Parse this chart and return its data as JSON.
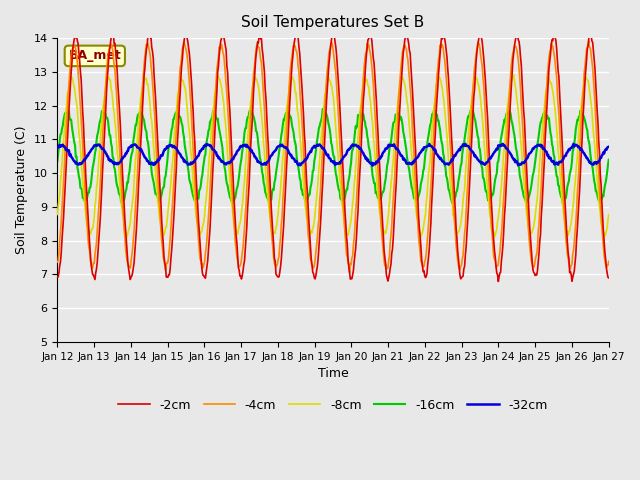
{
  "title": "Soil Temperatures Set B",
  "xlabel": "Time",
  "ylabel": "Soil Temperature (C)",
  "ylim": [
    5.0,
    14.0
  ],
  "yticks": [
    5.0,
    6.0,
    7.0,
    8.0,
    9.0,
    10.0,
    11.0,
    12.0,
    13.0,
    14.0
  ],
  "xtick_labels": [
    "Jan 12",
    "Jan 13",
    "Jan 14",
    "Jan 15",
    "Jan 16",
    "Jan 17",
    "Jan 18",
    "Jan 19",
    "Jan 20",
    "Jan 21",
    "Jan 22",
    "Jan 23",
    "Jan 24",
    "Jan 25",
    "Jan 26",
    "Jan 27"
  ],
  "legend_labels": [
    "-2cm",
    "-4cm",
    "-8cm",
    "-16cm",
    "-32cm"
  ],
  "legend_colors": [
    "#dd0000",
    "#ff8800",
    "#dddd00",
    "#00cc00",
    "#0000dd"
  ],
  "line_widths": [
    1.2,
    1.2,
    1.2,
    1.5,
    1.8
  ],
  "annotation_text": "BA_met",
  "background_color": "#e8e8e8",
  "plot_bg_color": "#e8e8e8",
  "grid_color": "#ffffff",
  "n_points_per_day": 48,
  "n_days": 15,
  "depth_params": {
    "d2": {
      "mean": 10.5,
      "amp": 3.6,
      "phase": -1.5708,
      "noise": 0.05
    },
    "d4": {
      "mean": 10.5,
      "amp": 3.3,
      "phase": -1.27,
      "noise": 0.05
    },
    "d8": {
      "mean": 10.5,
      "amp": 2.3,
      "phase": -0.87,
      "noise": 0.05
    },
    "d16": {
      "mean": 10.5,
      "amp": 1.3,
      "phase": -0.07,
      "noise": 0.05
    },
    "d32": {
      "mean": 10.55,
      "amp": 0.28,
      "phase": 1.0,
      "noise": 0.02
    }
  }
}
